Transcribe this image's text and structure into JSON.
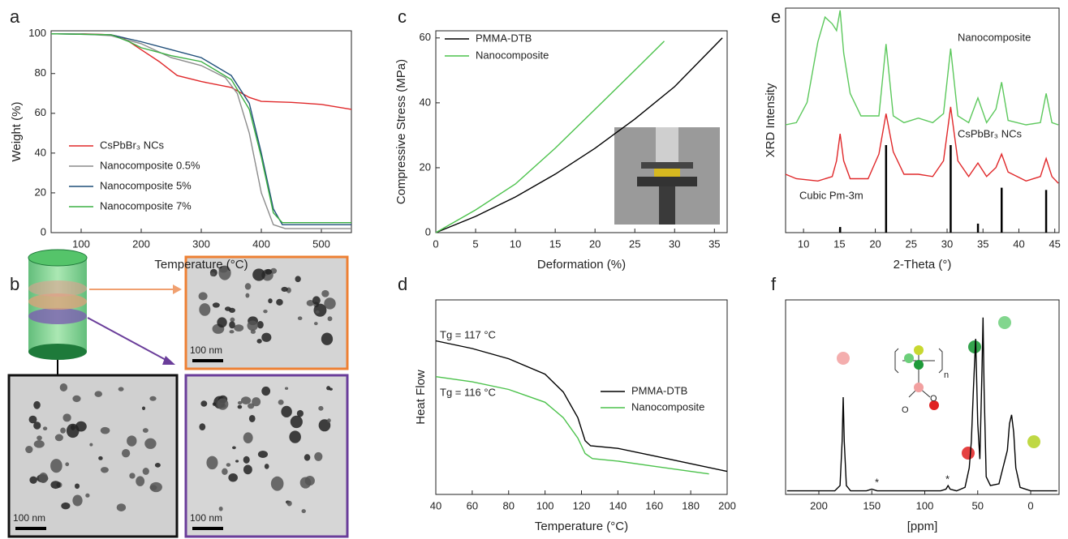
{
  "panels": [
    "a",
    "b",
    "c",
    "d",
    "e",
    "f"
  ],
  "micrographs": {
    "scale_bars": [
      "100 nm",
      "100 nm",
      "100 nm"
    ]
  },
  "chart_data": [
    {
      "type": "line",
      "panel": "a",
      "xlabel": "Temperature (°C)",
      "ylabel": "Weight (%)",
      "xlim": [
        50,
        550
      ],
      "ylim": [
        0,
        101.5
      ],
      "xticks": [
        100,
        200,
        300,
        400,
        500
      ],
      "yticks": [
        0,
        20,
        40,
        60,
        80,
        100
      ],
      "series": [
        {
          "name": "CsPbBr₃ NCs",
          "color": "#e0282a",
          "x": [
            50,
            100,
            150,
            170,
            200,
            230,
            260,
            300,
            350,
            380,
            400,
            450,
            500,
            550
          ],
          "values": [
            100,
            100,
            99.5,
            98,
            92,
            86,
            79,
            76,
            73,
            68,
            66,
            65.5,
            64.5,
            62
          ]
        },
        {
          "name": "Nanocomposite 0.5%",
          "color": "#8c8c8c",
          "x": [
            50,
            100,
            150,
            200,
            250,
            300,
            340,
            360,
            380,
            400,
            420,
            440,
            550
          ],
          "values": [
            100,
            100,
            99,
            95,
            88,
            84,
            78,
            70,
            50,
            20,
            4,
            2,
            2
          ]
        },
        {
          "name": "Nanocomposite 5%",
          "color": "#1f4e79",
          "x": [
            50,
            150,
            200,
            250,
            300,
            350,
            380,
            400,
            420,
            435,
            550
          ],
          "values": [
            100,
            99.5,
            96,
            92,
            88,
            79,
            65,
            40,
            12,
            4,
            4
          ]
        },
        {
          "name": "Nanocomposite 7%",
          "color": "#3cb043",
          "x": [
            50,
            150,
            180,
            200,
            250,
            300,
            350,
            380,
            400,
            420,
            435,
            550
          ],
          "values": [
            100,
            99.5,
            96,
            93,
            89,
            86,
            77,
            62,
            38,
            10,
            5,
            5
          ]
        }
      ]
    },
    {
      "type": "line",
      "panel": "c",
      "xlabel": "Deformation (%)",
      "ylabel": "Compressive Stress (MPa)",
      "xlim": [
        0,
        36.6
      ],
      "ylim": [
        0,
        62.2
      ],
      "xticks": [
        0,
        5,
        10,
        15,
        20,
        25,
        30,
        35
      ],
      "yticks": [
        0,
        20,
        40,
        60
      ],
      "series": [
        {
          "name": "PMMA-DTB",
          "color": "#000000",
          "x": [
            0,
            5,
            10,
            15,
            20,
            25,
            30,
            36
          ],
          "values": [
            0,
            5,
            11,
            18,
            26,
            35,
            45,
            60
          ]
        },
        {
          "name": "Nanocomposite",
          "color": "#4cc24c",
          "x": [
            0,
            5,
            10,
            15,
            20,
            25,
            28.7
          ],
          "values": [
            0,
            7,
            15,
            26,
            38,
            50,
            59
          ]
        }
      ]
    },
    {
      "type": "line",
      "panel": "d",
      "xlabel": "Temperature (°C)",
      "ylabel": "Heat Flow",
      "xlim": [
        40,
        200
      ],
      "ylim": [
        1,
        4.8
      ],
      "xticks": [
        40,
        60,
        80,
        100,
        120,
        140,
        160,
        180,
        200
      ],
      "annotations": [
        {
          "text": "Tg = 117 °C",
          "color": "#000000"
        },
        {
          "text": "Tg = 116 °C",
          "color": "#4cc24c"
        }
      ],
      "series": [
        {
          "name": "PMMA-DTB",
          "color": "#000000",
          "x": [
            40,
            60,
            80,
            100,
            110,
            118,
            122,
            125,
            140,
            160,
            180,
            200
          ],
          "values": [
            4.0,
            3.85,
            3.65,
            3.35,
            3.0,
            2.5,
            2.05,
            1.95,
            1.9,
            1.75,
            1.6,
            1.45
          ]
        },
        {
          "name": "Nanocomposite",
          "color": "#4cc24c",
          "x": [
            40,
            60,
            80,
            100,
            110,
            118,
            122,
            126,
            140,
            160,
            180,
            190
          ],
          "values": [
            3.3,
            3.2,
            3.05,
            2.8,
            2.5,
            2.1,
            1.8,
            1.7,
            1.65,
            1.55,
            1.45,
            1.4
          ]
        }
      ]
    },
    {
      "type": "line",
      "panel": "e",
      "xlabel": "2-Theta (°)",
      "ylabel": "XRD Intensity",
      "xlim": [
        7.5,
        45.6
      ],
      "ylim": [
        0,
        100
      ],
      "xticks": [
        10,
        15,
        20,
        25,
        30,
        35,
        40,
        45
      ],
      "series": [
        {
          "name": "Nanocomposite",
          "color": "#5cc85c",
          "x": [
            7.5,
            9,
            10.5,
            12,
            13,
            14,
            14.6,
            15.1,
            15.6,
            16.5,
            18,
            20.5,
            21.5,
            22.5,
            24,
            26,
            28,
            29.5,
            30.5,
            31.5,
            33,
            34.3,
            35.5,
            36.8,
            37.6,
            38.5,
            41,
            43,
            43.8,
            44.6,
            45.5
          ],
          "values": [
            48,
            49,
            58,
            85,
            96,
            93,
            90,
            99,
            80,
            62,
            52,
            52,
            84,
            52,
            49,
            51,
            49,
            53,
            82,
            52,
            49,
            60,
            49,
            55,
            67,
            50,
            48,
            49,
            62,
            49,
            48
          ]
        },
        {
          "name": "CsPbBr₃ NCs",
          "color": "#e0282a",
          "x": [
            7.5,
            9,
            12,
            14,
            14.6,
            15.1,
            15.6,
            16.5,
            19,
            20.5,
            21.5,
            22.5,
            24,
            26,
            28,
            29.5,
            30.5,
            31.5,
            33,
            34.3,
            35.5,
            36.8,
            37.6,
            38.5,
            41,
            43,
            43.8,
            44.6,
            45.5
          ],
          "values": [
            26,
            24,
            23,
            25,
            32,
            44,
            32,
            24,
            24,
            35,
            53,
            36,
            26,
            26,
            25,
            32,
            56,
            32,
            25,
            31,
            25,
            29,
            35,
            27,
            23,
            25,
            33,
            25,
            22
          ]
        }
      ],
      "reference": {
        "name": "Cubic Pm-3m",
        "color": "#000000",
        "x": [
          15.1,
          21.5,
          30.5,
          34.3,
          37.6,
          43.8
        ],
        "values": [
          2.5,
          39,
          39,
          4,
          20,
          19
        ]
      }
    },
    {
      "type": "line",
      "panel": "f",
      "xlabel": "[ppm]",
      "xlim": [
        231.4,
        -26.8
      ],
      "ylim": [
        0,
        110
      ],
      "xticks": [
        200,
        150,
        100,
        50,
        0
      ],
      "annotations": [
        {
          "text": "*",
          "color": "#000000"
        },
        {
          "text": "*",
          "color": "#000000"
        }
      ],
      "structure_labels": [
        "n",
        "O",
        "O"
      ],
      "series": [
        {
          "color": "#000000",
          "x": [
            230,
            200,
            185,
            180,
            178,
            177,
            176,
            174,
            170,
            155,
            150,
            145,
            120,
            85,
            80,
            78,
            76,
            70,
            62,
            58,
            56,
            54,
            52,
            50,
            48,
            46,
            45,
            44,
            42,
            38,
            30,
            22,
            20,
            18,
            16,
            14,
            10,
            0,
            -25
          ],
          "values": [
            2,
            2,
            2,
            5,
            30,
            55,
            30,
            5,
            2,
            2,
            3,
            2,
            2,
            2,
            3,
            5,
            3,
            2,
            4,
            15,
            30,
            60,
            88,
            40,
            20,
            70,
            100,
            60,
            10,
            5,
            6,
            25,
            40,
            45,
            35,
            15,
            4,
            2,
            2
          ]
        }
      ]
    }
  ]
}
